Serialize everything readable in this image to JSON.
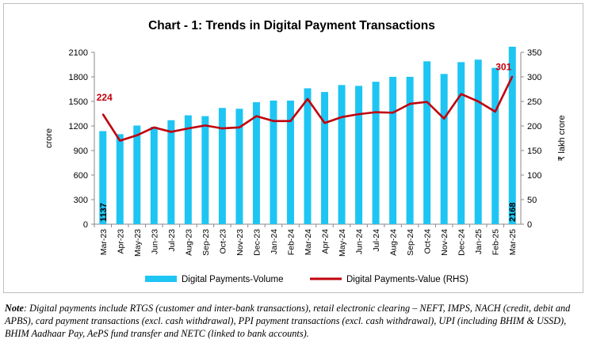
{
  "chart_data": {
    "type": "bar+line",
    "title": "Chart - 1: Trends in Digital Payment Transactions",
    "ylabel_left": "crore",
    "ylabel_right": "₹ lakh crore",
    "ylim_left": [
      0,
      2100
    ],
    "yticks_left": [
      "0",
      "300",
      "600",
      "900",
      "1200",
      "1500",
      "1800",
      "2100"
    ],
    "ylim_right": [
      0,
      350
    ],
    "yticks_right": [
      "0",
      "50",
      "100",
      "150",
      "200",
      "250",
      "300",
      "350"
    ],
    "categories": [
      "Mar-23",
      "Apr-23",
      "May-23",
      "Jun-23",
      "Jul-23",
      "Aug-23",
      "Sep-23",
      "Oct-23",
      "Nov-23",
      "Dec-23",
      "Jan-24",
      "Feb-24",
      "Mar-24",
      "Apr-24",
      "May-24",
      "Jun-24",
      "Jul-24",
      "Aug-24",
      "Sep-24",
      "Oct-24",
      "Nov-24",
      "Dec-24",
      "Jan-25",
      "Feb-25",
      "Mar-25"
    ],
    "series": [
      {
        "name": "Digital Payments-Volume",
        "kind": "bar",
        "axis": "left",
        "color": "#1ec5f3",
        "values": [
          1137,
          1100,
          1205,
          1190,
          1270,
          1330,
          1320,
          1420,
          1410,
          1490,
          1510,
          1510,
          1660,
          1615,
          1700,
          1690,
          1740,
          1800,
          1800,
          1990,
          1835,
          1980,
          2010,
          1910,
          2168
        ]
      },
      {
        "name": "Digital Payments-Value (RHS)",
        "kind": "line",
        "axis": "right",
        "color": "#c0000c",
        "values": [
          224,
          170,
          181,
          197,
          188,
          195,
          201,
          195,
          197,
          220,
          210,
          210,
          255,
          206,
          218,
          224,
          228,
          227,
          245,
          249,
          215,
          265,
          250,
          229,
          301
        ]
      }
    ],
    "data_labels": {
      "first_bar": "1137",
      "last_bar": "2168",
      "first_line": "224",
      "last_line": "301"
    },
    "legend_position": "bottom",
    "grid": false
  },
  "note": {
    "label": "Note",
    "text": ": Digital payments include RTGS (customer and inter-bank transactions), retail electronic clearing – NEFT, IMPS, NACH (credit, debit and APBS), card payment transactions (excl. cash withdrawal), PPI payment transactions (excl. cash withdrawal), UPI (including BHIM & USSD), BHIM Aadhaar Pay, AePS fund transfer and NETC (linked to bank accounts)."
  }
}
